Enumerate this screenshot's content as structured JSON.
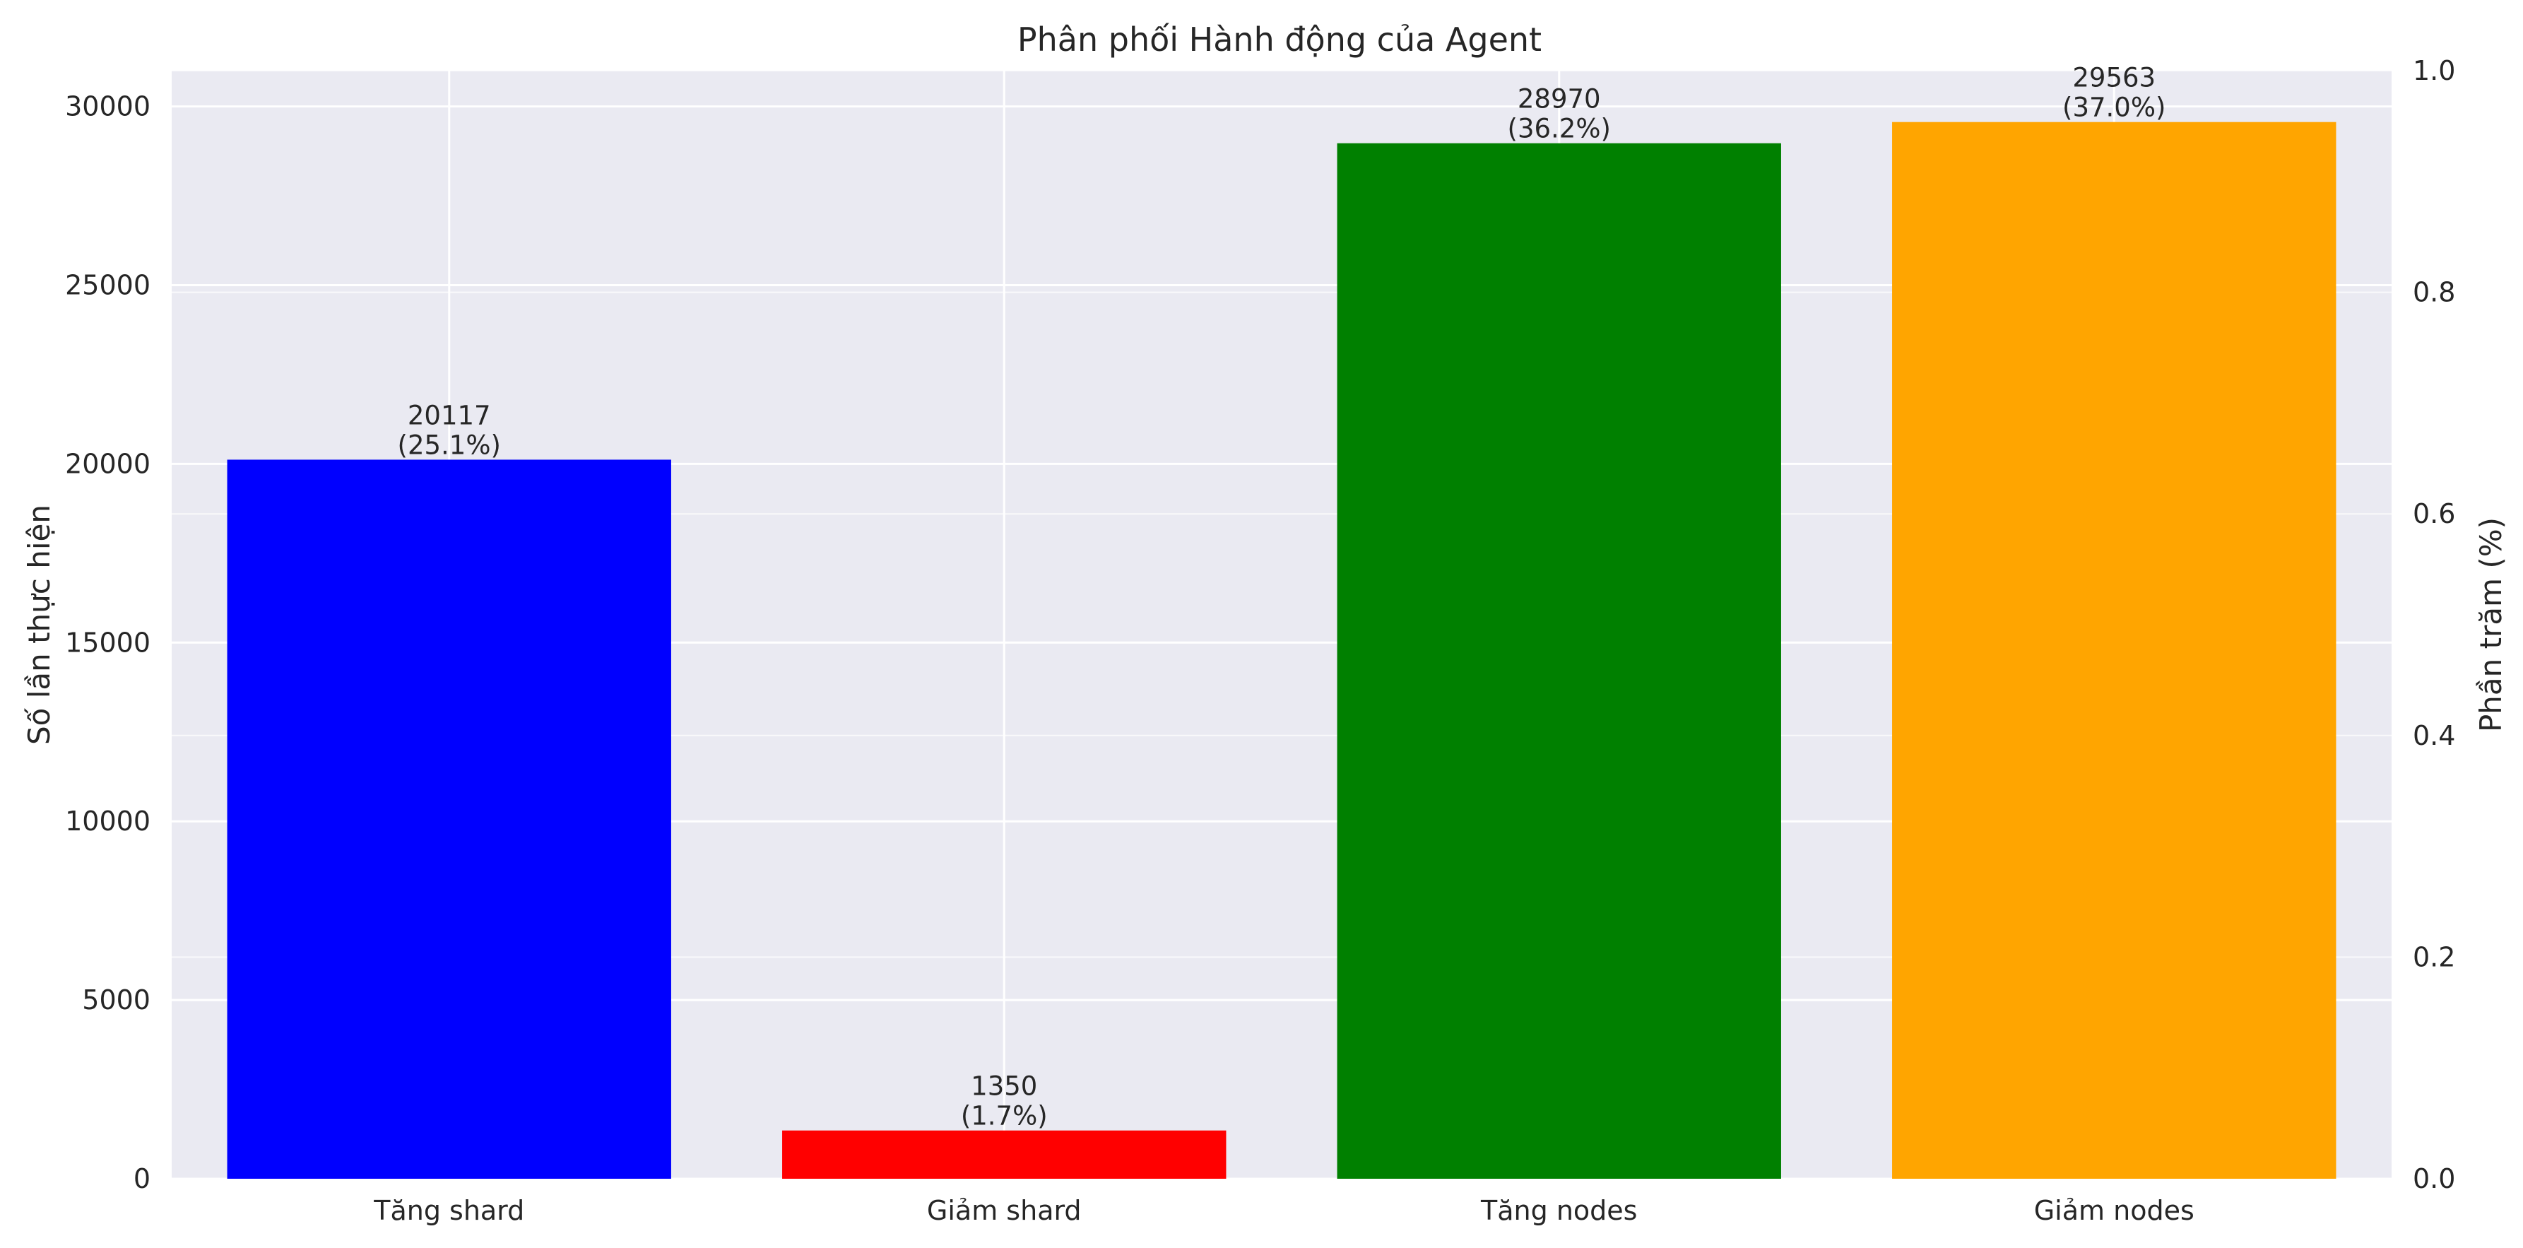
{
  "chart_data": {
    "type": "bar",
    "title": "Phân phối Hành động của Agent",
    "xlabel": "",
    "ylabel": "Số lần thực hiện",
    "y2label": "Phần trăm (%)",
    "categories": [
      "Tăng shard",
      "Giảm shard",
      "Tăng nodes",
      "Giảm nodes"
    ],
    "values": [
      20117,
      1350,
      28970,
      29563
    ],
    "percent_labels": [
      "(25.1%)",
      "(1.7%)",
      "(36.2%)",
      "(37.0%)"
    ],
    "value_labels": [
      "20117",
      "1350",
      "28970",
      "29563"
    ],
    "colors": [
      "#0000ff",
      "#ff0000",
      "#008000",
      "#ffa500"
    ],
    "ylim": [
      0,
      31000
    ],
    "yticks": [
      0,
      5000,
      10000,
      15000,
      20000,
      25000,
      30000
    ],
    "y2lim": [
      0,
      1.0
    ],
    "y2ticks": [
      "0.0",
      "0.2",
      "0.4",
      "0.6",
      "0.8",
      "1.0"
    ],
    "grid": true,
    "background": "#eaeaf2"
  }
}
